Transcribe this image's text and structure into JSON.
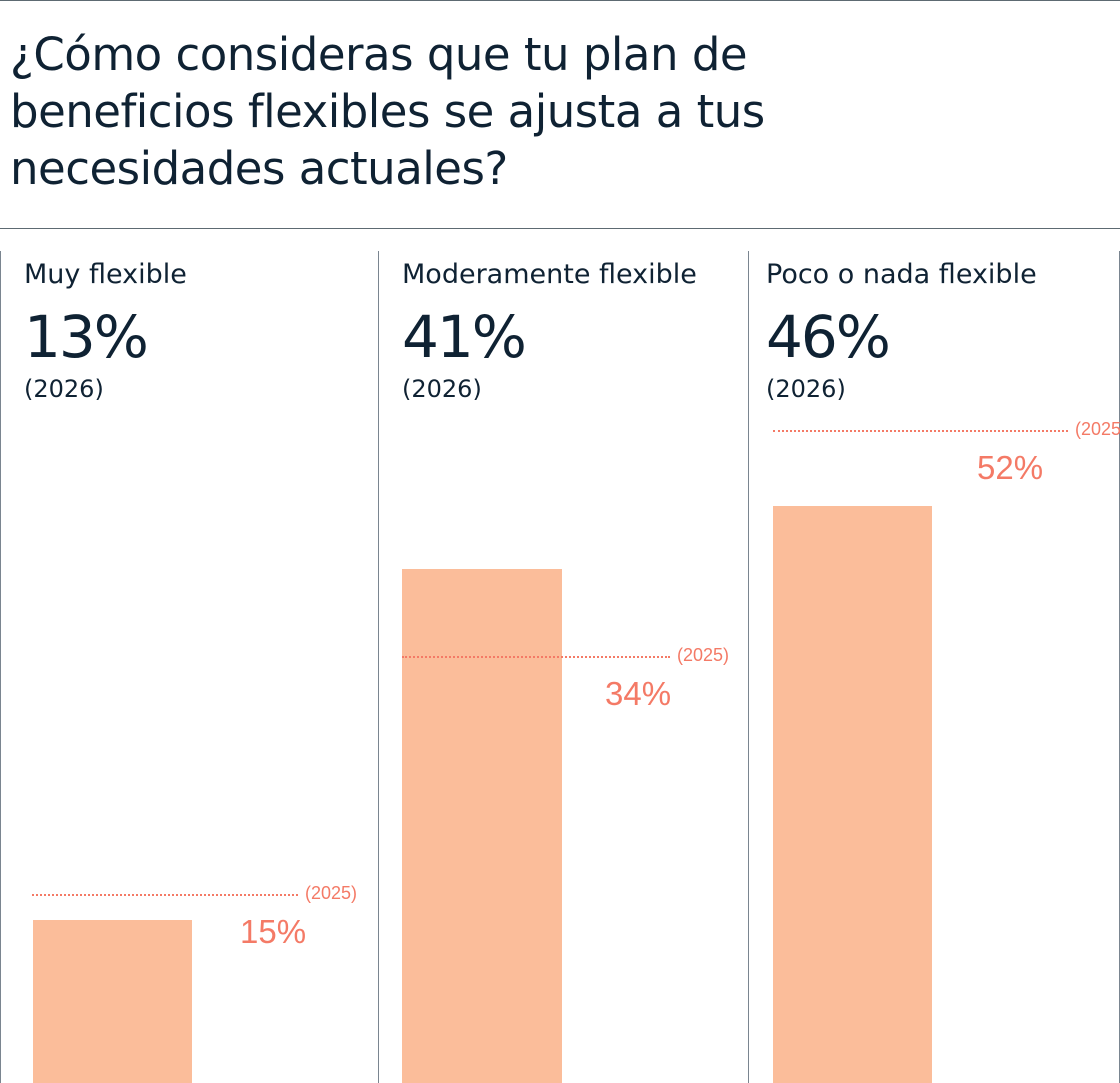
{
  "chart_data": {
    "type": "bar",
    "title": "¿Cómo consideras que tu plan de beneficios flexibles se ajusta a tus necesidades actuales?",
    "title_lines": [
      "¿Cómo consideras que tu plan de",
      "beneficios flexibles se ajusta a tus",
      "necesidades actuales?"
    ],
    "categories": [
      "Muy flexible",
      "Moderamente flexible",
      "Poco o nada flexible"
    ],
    "series": [
      {
        "name": "2026",
        "values": [
          13,
          41,
          46
        ],
        "labels": [
          "13%",
          "41%",
          "46%"
        ],
        "year_label": "(2026)"
      },
      {
        "name": "2025",
        "values": [
          15,
          34,
          52
        ],
        "labels": [
          "15%",
          "34%",
          "52%"
        ],
        "year_label": "(2025)",
        "style": "dotted-reference-line"
      }
    ],
    "ylim": [
      0,
      100
    ],
    "colors": {
      "bar_2026": "#fbbd9a",
      "ref_2025": "#f47a66",
      "text": "#0f2233"
    }
  }
}
